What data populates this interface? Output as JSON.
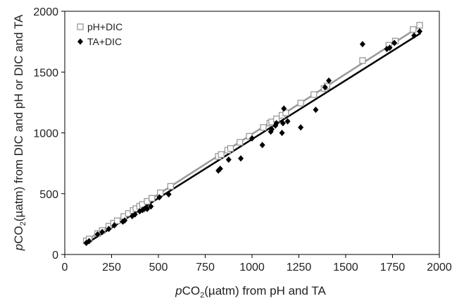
{
  "chart_data": {
    "type": "scatter",
    "title": "",
    "xlabel": {
      "italic": "p",
      "main": "CO",
      "sub": "2",
      "rest": "(µatm) from pH and TA"
    },
    "ylabel": {
      "italic": "p",
      "main": "CO",
      "sub": "2",
      "rest": "(µatm) from DIC and pH or DIC and TA"
    },
    "xlim": [
      0,
      2000
    ],
    "ylim": [
      0,
      2000
    ],
    "xticks": [
      0,
      250,
      500,
      750,
      1000,
      1250,
      1500,
      1750,
      2000
    ],
    "yticks": [
      0,
      500,
      1000,
      1500,
      2000
    ],
    "grid": false,
    "legend_position": "top-left",
    "series": [
      {
        "name": "pH+DIC",
        "marker": "open-square",
        "color": "#999999",
        "trendline": {
          "x": [
            110,
            1900
          ],
          "y": [
            110,
            1880
          ]
        },
        "points": [
          {
            "x": 115,
            "y": 112
          },
          {
            "x": 130,
            "y": 127
          },
          {
            "x": 175,
            "y": 172
          },
          {
            "x": 200,
            "y": 197
          },
          {
            "x": 235,
            "y": 232
          },
          {
            "x": 260,
            "y": 257
          },
          {
            "x": 280,
            "y": 277
          },
          {
            "x": 315,
            "y": 312
          },
          {
            "x": 340,
            "y": 337
          },
          {
            "x": 365,
            "y": 362
          },
          {
            "x": 380,
            "y": 377
          },
          {
            "x": 400,
            "y": 397
          },
          {
            "x": 415,
            "y": 412
          },
          {
            "x": 440,
            "y": 437
          },
          {
            "x": 465,
            "y": 462
          },
          {
            "x": 510,
            "y": 507
          },
          {
            "x": 565,
            "y": 560
          },
          {
            "x": 820,
            "y": 807
          },
          {
            "x": 835,
            "y": 822
          },
          {
            "x": 870,
            "y": 857
          },
          {
            "x": 885,
            "y": 872
          },
          {
            "x": 935,
            "y": 922
          },
          {
            "x": 985,
            "y": 972
          },
          {
            "x": 1060,
            "y": 1045
          },
          {
            "x": 1095,
            "y": 1080
          },
          {
            "x": 1105,
            "y": 1090
          },
          {
            "x": 1130,
            "y": 1115
          },
          {
            "x": 1160,
            "y": 1145
          },
          {
            "x": 1180,
            "y": 1165
          },
          {
            "x": 1260,
            "y": 1245
          },
          {
            "x": 1330,
            "y": 1315
          },
          {
            "x": 1385,
            "y": 1365
          },
          {
            "x": 1400,
            "y": 1385
          },
          {
            "x": 1590,
            "y": 1595
          },
          {
            "x": 1730,
            "y": 1720
          },
          {
            "x": 1765,
            "y": 1755
          },
          {
            "x": 1860,
            "y": 1850
          },
          {
            "x": 1895,
            "y": 1885
          }
        ]
      },
      {
        "name": "TA+DIC",
        "marker": "filled-diamond",
        "color": "#000000",
        "trendline": {
          "x": [
            110,
            1900
          ],
          "y": [
            85,
            1820
          ]
        },
        "points": [
          {
            "x": 115,
            "y": 95
          },
          {
            "x": 130,
            "y": 110
          },
          {
            "x": 175,
            "y": 165
          },
          {
            "x": 200,
            "y": 185
          },
          {
            "x": 235,
            "y": 210
          },
          {
            "x": 265,
            "y": 240
          },
          {
            "x": 310,
            "y": 270
          },
          {
            "x": 320,
            "y": 280
          },
          {
            "x": 360,
            "y": 315
          },
          {
            "x": 375,
            "y": 330
          },
          {
            "x": 400,
            "y": 355
          },
          {
            "x": 415,
            "y": 365
          },
          {
            "x": 425,
            "y": 375
          },
          {
            "x": 435,
            "y": 385
          },
          {
            "x": 440,
            "y": 375
          },
          {
            "x": 460,
            "y": 395
          },
          {
            "x": 505,
            "y": 470
          },
          {
            "x": 555,
            "y": 495
          },
          {
            "x": 820,
            "y": 690
          },
          {
            "x": 830,
            "y": 705
          },
          {
            "x": 875,
            "y": 780
          },
          {
            "x": 940,
            "y": 790
          },
          {
            "x": 1000,
            "y": 955
          },
          {
            "x": 1055,
            "y": 900
          },
          {
            "x": 1100,
            "y": 1010
          },
          {
            "x": 1105,
            "y": 1030
          },
          {
            "x": 1125,
            "y": 1060
          },
          {
            "x": 1130,
            "y": 1080
          },
          {
            "x": 1160,
            "y": 1000
          },
          {
            "x": 1165,
            "y": 1080
          },
          {
            "x": 1170,
            "y": 1200
          },
          {
            "x": 1190,
            "y": 1095
          },
          {
            "x": 1260,
            "y": 1045
          },
          {
            "x": 1340,
            "y": 1190
          },
          {
            "x": 1390,
            "y": 1375
          },
          {
            "x": 1410,
            "y": 1430
          },
          {
            "x": 1590,
            "y": 1730
          },
          {
            "x": 1720,
            "y": 1690
          },
          {
            "x": 1735,
            "y": 1700
          },
          {
            "x": 1760,
            "y": 1740
          },
          {
            "x": 1865,
            "y": 1800
          },
          {
            "x": 1895,
            "y": 1835
          }
        ]
      }
    ]
  }
}
